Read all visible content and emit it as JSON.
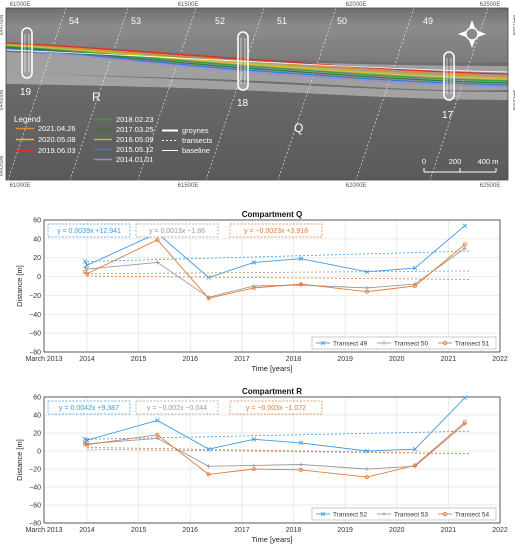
{
  "map": {
    "top_ticks": [
      "61000E",
      "61500E",
      "62000E",
      "62500E"
    ],
    "bottom_ticks": [
      "61000E",
      "61500E",
      "62000E",
      "62500E"
    ],
    "left_ticks": [
      "644750N",
      "644500N",
      "644250N"
    ],
    "right_ticks": [
      "644750N",
      "644500N"
    ],
    "transect_numbers": [
      "54",
      "53",
      "52",
      "51",
      "50",
      "49"
    ],
    "groyne_labels": [
      "19",
      "18",
      "17"
    ],
    "compartment_labels": [
      "R",
      "Q"
    ],
    "legend_title": "Legend",
    "legend_lines": [
      {
        "label": "2021.04.26",
        "color": "#e8892b"
      },
      {
        "label": "2020.05.08",
        "color": "#f2b33d"
      },
      {
        "label": "2019.06.03",
        "color": "#d9302b"
      },
      {
        "label": "2018.02.23",
        "color": "#3c9a3c"
      },
      {
        "label": "2017.03.25",
        "color": "#2e7a3a"
      },
      {
        "label": "2016.05.09",
        "color": "#a7c43f"
      },
      {
        "label": "2015.05.12",
        "color": "#2f7dd1"
      },
      {
        "label": "2014.01.01",
        "color": "#9b8ad6"
      }
    ],
    "legend_features": [
      {
        "label": "groynes",
        "color": "#ffffff"
      },
      {
        "label": "transects",
        "color": "#ffffff"
      },
      {
        "label": "baseline",
        "color": "#ffffff"
      }
    ],
    "scale_labels": [
      "0",
      "200",
      "400 m"
    ],
    "compass_icon": "compass-rose-icon"
  },
  "chart_data": [
    {
      "type": "line",
      "title": "Compartment Q",
      "xlabel": "Time [years]",
      "ylabel": "Distance [m]",
      "xlim": [
        "2013-03",
        "2022-01"
      ],
      "ylim": [
        -80,
        60
      ],
      "x_tick_labels": [
        "March 2013",
        "2014",
        "2015",
        "2016",
        "2017",
        "2018",
        "2019",
        "2020",
        "2021",
        "2022"
      ],
      "y_tick_labels": [
        "60",
        "40",
        "20",
        "0",
        "−20",
        "−40",
        "−60",
        "−80"
      ],
      "grid": true,
      "legend_placement": "bottom-right",
      "x": [
        "2014-01-01",
        "2015-05-12",
        "2016-05-09",
        "2017-03-25",
        "2018-02-23",
        "2019-06-03",
        "2020-05-08",
        "2021-04-26"
      ],
      "series": [
        {
          "name": "Transect 49",
          "color": "#3d9be3",
          "marker": "x",
          "values": [
            12,
            46,
            -1,
            15,
            19,
            5,
            9,
            54
          ],
          "first_value": 16,
          "trend_text": "y = 0.0039x +12.941",
          "trend": [
            16.0,
            27.0
          ]
        },
        {
          "name": "Transect 50",
          "color": "#9a9a9a",
          "marker": "+",
          "values": [
            8,
            15,
            -22,
            -10,
            -9,
            -12,
            -8,
            30
          ],
          "first_value": 10,
          "trend_text": "y = 0.0013x −1.86",
          "trend": [
            3.0,
            6.0
          ]
        },
        {
          "name": "Transect 51",
          "color": "#e07b39",
          "marker": "o",
          "values": [
            3,
            39,
            -23,
            -12,
            -8,
            -16,
            -10,
            34
          ],
          "first_value": 5,
          "trend_text": "y = −0.0023x +3.918",
          "trend": [
            0.5,
            -3.0
          ]
        }
      ]
    },
    {
      "type": "line",
      "title": "Compartment R",
      "xlabel": "Time [years]",
      "ylabel": "Distance [m]",
      "xlim": [
        "2013-03",
        "2022-01"
      ],
      "ylim": [
        -80,
        60
      ],
      "x_tick_labels": [
        "March 2013",
        "2014",
        "2015",
        "2016",
        "2017",
        "2018",
        "2019",
        "2020",
        "2021",
        "2022"
      ],
      "y_tick_labels": [
        "60",
        "40",
        "20",
        "0",
        "−20",
        "−40",
        "−60",
        "−80"
      ],
      "grid": true,
      "legend_placement": "bottom-right",
      "x": [
        "2014-01-01",
        "2015-05-12",
        "2016-05-09",
        "2017-03-25",
        "2018-02-23",
        "2019-06-03",
        "2020-05-08",
        "2021-04-26"
      ],
      "series": [
        {
          "name": "Transect 52",
          "color": "#3d9be3",
          "marker": "x",
          "values": [
            12,
            34,
            2,
            13,
            9,
            0,
            2,
            59
          ],
          "first_value": 13,
          "trend_text": "y = 0.0042x +9.387",
          "trend": [
            13.0,
            22.0
          ]
        },
        {
          "name": "Transect 53",
          "color": "#9a9a9a",
          "marker": "+",
          "values": [
            8,
            14,
            -17,
            -16,
            -15,
            -20,
            -17,
            30
          ],
          "first_value": 9,
          "trend_text": "y = −0.002x −0.044",
          "trend": [
            2.0,
            -3.0
          ]
        },
        {
          "name": "Transect 54",
          "color": "#e07b39",
          "marker": "o",
          "values": [
            7,
            18,
            -26,
            -20,
            -21,
            -29,
            -16,
            32
          ],
          "first_value": 8,
          "trend_text": "y = −0.003x −1.072",
          "trend": [
            4.0,
            -3.0
          ]
        }
      ]
    }
  ]
}
